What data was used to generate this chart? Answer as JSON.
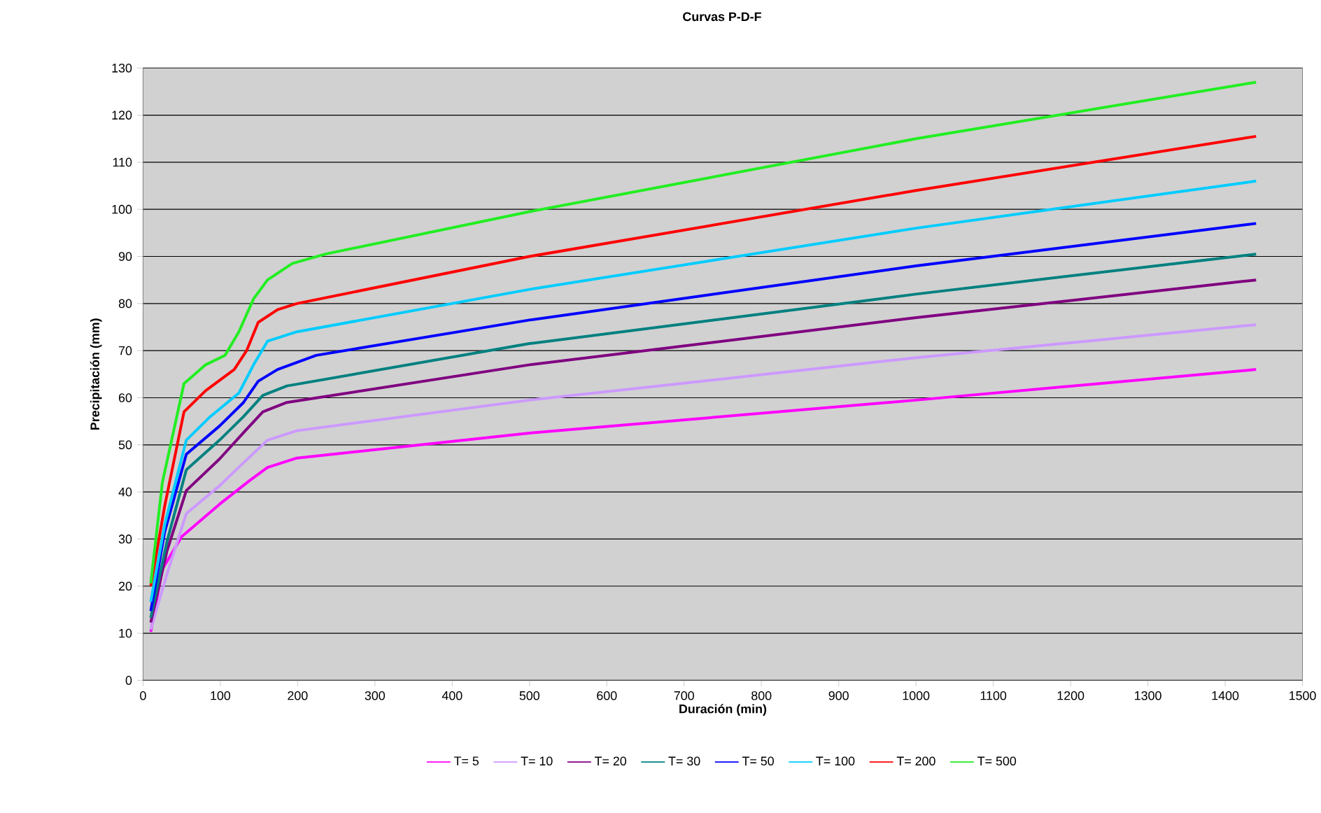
{
  "chart_data": {
    "type": "line",
    "title": "Curvas P-D-F",
    "xlabel": "Duración (min)",
    "ylabel": "Precipitación (mm)",
    "xlim": [
      0,
      1500
    ],
    "ylim": [
      0,
      130
    ],
    "xticks": [
      0,
      100,
      200,
      300,
      400,
      500,
      600,
      700,
      800,
      900,
      1000,
      1100,
      1200,
      1300,
      1400,
      1500
    ],
    "yticks": [
      0,
      10,
      20,
      30,
      40,
      50,
      60,
      70,
      80,
      90,
      100,
      110,
      120,
      130
    ],
    "grid": "y",
    "legend": "bottom",
    "marker": "none",
    "line_style": "solid",
    "series": [
      {
        "name": "T= 5",
        "color": "#ff00ff",
        "x": [
          10,
          25,
          50,
          99,
          137,
          161,
          199,
          500,
          1000,
          1440
        ],
        "values": [
          10.3,
          23.6,
          30.5,
          37.4,
          42.3,
          45.2,
          47.2,
          52.5,
          59.5,
          66
        ]
      },
      {
        "name": "T= 10",
        "color": "#cc99ff",
        "x": [
          10,
          31,
          56,
          99,
          130,
          161,
          199,
          500,
          1000,
          1440
        ],
        "values": [
          10.8,
          22.6,
          35.4,
          41.3,
          46.2,
          51,
          53,
          59.5,
          68.5,
          75.5
        ]
      },
      {
        "name": "T= 20",
        "color": "#800080",
        "x": [
          10,
          31,
          56,
          99,
          130,
          155,
          186,
          500,
          1000,
          1440
        ],
        "values": [
          12.3,
          27.5,
          40.3,
          47,
          52.6,
          57,
          59,
          67,
          77,
          85
        ]
      },
      {
        "name": "T= 30",
        "color": "#008080",
        "x": [
          10,
          31,
          56,
          99,
          130,
          155,
          186,
          500,
          1000,
          1440
        ],
        "values": [
          13.3,
          29.5,
          44.7,
          51,
          56,
          60.5,
          62.5,
          71.5,
          82,
          90.5
        ]
      },
      {
        "name": "T= 50",
        "color": "#0000ff",
        "x": [
          10,
          28,
          56,
          99,
          130,
          149,
          174,
          224,
          500,
          1000,
          1440
        ],
        "values": [
          14.7,
          31.5,
          48,
          54,
          59,
          63.5,
          66,
          69,
          76.5,
          88,
          97
        ]
      },
      {
        "name": "T= 100",
        "color": "#00ccff",
        "x": [
          10,
          28,
          56,
          87,
          124,
          143,
          161,
          199,
          500,
          1000,
          1440
        ],
        "values": [
          16.7,
          33,
          51,
          56,
          61,
          67,
          72,
          74,
          83,
          96,
          106
        ]
      },
      {
        "name": "T= 200",
        "color": "#ff0000",
        "x": [
          10,
          28,
          53,
          81,
          118,
          134,
          149,
          174,
          199,
          500,
          1000,
          1440
        ],
        "values": [
          20,
          37,
          57,
          61.5,
          66,
          70,
          76,
          78.7,
          80,
          90,
          104,
          115.5
        ]
      },
      {
        "name": "T= 500",
        "color": "#22ee22",
        "x": [
          10,
          25,
          53,
          81,
          106,
          124,
          143,
          161,
          193,
          236,
          500,
          1000,
          1440
        ],
        "values": [
          20.6,
          42,
          63,
          67,
          69,
          74,
          81,
          85,
          88.5,
          90.5,
          99.5,
          115,
          127
        ]
      }
    ]
  }
}
